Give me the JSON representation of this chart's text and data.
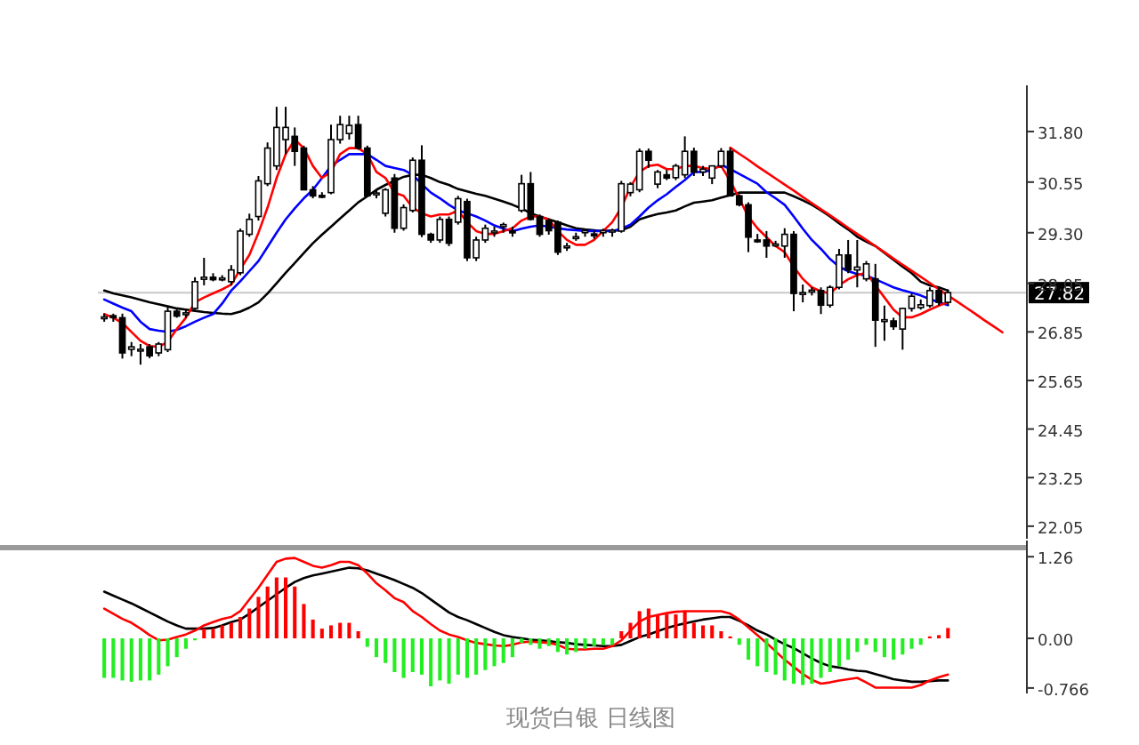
{
  "chart_data": [
    {
      "type": "candlestick",
      "categories": [
        null,
        null,
        null,
        null,
        null,
        null,
        null,
        null,
        null,
        null,
        null,
        null,
        null,
        null,
        null,
        null,
        null,
        null,
        null,
        null,
        null,
        null,
        null,
        null,
        null,
        null,
        null,
        null,
        null,
        null,
        null,
        null,
        null,
        null,
        null,
        null,
        null,
        null,
        null,
        null,
        null,
        null,
        null,
        null,
        null,
        null,
        null,
        null,
        null,
        null,
        null,
        null,
        null,
        null,
        null,
        null,
        null,
        null,
        null,
        null,
        null,
        null,
        null,
        null,
        null,
        null,
        null,
        null,
        null,
        null,
        null,
        null,
        null,
        null,
        null,
        null,
        null,
        null,
        null,
        null,
        null,
        null,
        null,
        null,
        null,
        null,
        null,
        null,
        null,
        null,
        null,
        null,
        null,
        null,
        null,
        null,
        null,
        null,
        null,
        null,
        null,
        null
      ],
      "ohlc": [
        [
          27.2,
          27.3,
          27.1,
          27.22
        ],
        [
          27.25,
          27.3,
          27.1,
          27.2
        ],
        [
          27.2,
          27.3,
          26.19,
          26.33
        ],
        [
          26.42,
          26.6,
          26.25,
          26.48
        ],
        [
          26.4,
          26.55,
          26.04,
          26.42
        ],
        [
          26.48,
          26.55,
          26.2,
          26.26
        ],
        [
          26.33,
          26.6,
          26.25,
          26.55
        ],
        [
          26.41,
          27.45,
          26.35,
          27.36
        ],
        [
          27.36,
          27.45,
          27.2,
          27.24
        ],
        [
          27.3,
          27.4,
          27.2,
          27.32
        ],
        [
          27.43,
          28.2,
          27.4,
          28.09
        ],
        [
          28.15,
          28.68,
          28.0,
          28.2
        ],
        [
          28.2,
          28.3,
          28.1,
          28.14
        ],
        [
          28.17,
          28.25,
          28.1,
          28.18
        ],
        [
          28.09,
          28.5,
          28.0,
          28.38
        ],
        [
          28.31,
          29.4,
          28.25,
          29.34
        ],
        [
          29.26,
          29.77,
          29.2,
          29.63
        ],
        [
          29.7,
          30.7,
          29.6,
          30.58
        ],
        [
          30.51,
          31.53,
          30.45,
          31.39
        ],
        [
          30.95,
          32.41,
          30.85,
          31.9
        ],
        [
          31.6,
          32.41,
          31.24,
          31.9
        ],
        [
          31.68,
          31.9,
          30.95,
          31.31
        ],
        [
          31.39,
          31.45,
          30.36,
          30.36
        ],
        [
          30.36,
          30.45,
          30.15,
          30.21
        ],
        [
          30.22,
          30.3,
          30.15,
          30.2
        ],
        [
          30.29,
          31.97,
          30.25,
          31.6
        ],
        [
          31.6,
          32.19,
          31.5,
          31.97
        ],
        [
          31.75,
          32.19,
          31.6,
          31.95
        ],
        [
          31.97,
          32.19,
          31.35,
          31.39
        ],
        [
          31.39,
          31.45,
          30.21,
          30.21
        ],
        [
          30.25,
          30.36,
          30.15,
          30.28
        ],
        [
          29.78,
          30.4,
          29.7,
          30.36
        ],
        [
          30.65,
          30.75,
          29.3,
          29.41
        ],
        [
          29.41,
          30.0,
          29.35,
          29.92
        ],
        [
          29.85,
          31.16,
          29.8,
          31.09
        ],
        [
          31.09,
          31.46,
          29.19,
          29.26
        ],
        [
          29.26,
          29.3,
          29.05,
          29.12
        ],
        [
          29.12,
          29.7,
          29.05,
          29.63
        ],
        [
          29.63,
          29.7,
          28.97,
          29.04
        ],
        [
          29.56,
          30.21,
          29.5,
          30.14
        ],
        [
          30.07,
          30.14,
          28.6,
          28.68
        ],
        [
          28.68,
          29.2,
          28.6,
          29.12
        ],
        [
          29.12,
          29.5,
          29.05,
          29.41
        ],
        [
          29.3,
          29.45,
          29.2,
          29.34
        ],
        [
          29.45,
          29.55,
          29.3,
          29.5
        ],
        [
          29.34,
          29.45,
          29.2,
          29.3
        ],
        [
          29.85,
          30.73,
          29.8,
          30.51
        ],
        [
          30.51,
          30.8,
          29.6,
          29.63
        ],
        [
          29.7,
          29.75,
          29.2,
          29.26
        ],
        [
          29.6,
          29.65,
          29.25,
          29.35
        ],
        [
          29.56,
          29.6,
          28.75,
          28.82
        ],
        [
          28.95,
          29.05,
          28.85,
          28.97
        ],
        [
          29.18,
          29.3,
          29.1,
          29.2
        ],
        [
          29.3,
          29.4,
          29.2,
          29.35
        ],
        [
          29.27,
          29.35,
          29.15,
          29.25
        ],
        [
          29.3,
          29.4,
          29.2,
          29.35
        ],
        [
          29.33,
          29.4,
          29.2,
          29.36
        ],
        [
          29.34,
          30.58,
          29.3,
          30.51
        ],
        [
          30.29,
          30.55,
          30.2,
          30.5
        ],
        [
          30.36,
          31.38,
          30.3,
          31.31
        ],
        [
          31.31,
          31.38,
          30.9,
          31.09
        ],
        [
          30.5,
          30.85,
          30.4,
          30.8
        ],
        [
          30.73,
          30.85,
          30.6,
          30.65
        ],
        [
          30.66,
          31.0,
          30.6,
          30.95
        ],
        [
          30.73,
          31.68,
          30.65,
          31.31
        ],
        [
          31.31,
          31.4,
          30.7,
          30.8
        ],
        [
          30.8,
          30.95,
          30.7,
          30.87
        ],
        [
          30.65,
          30.95,
          30.5,
          30.95
        ],
        [
          30.95,
          31.39,
          30.9,
          31.31
        ],
        [
          31.31,
          31.39,
          30.21,
          30.21
        ],
        [
          30.21,
          30.25,
          29.95,
          29.99
        ],
        [
          29.99,
          30.05,
          28.82,
          29.19
        ],
        [
          29.12,
          29.27,
          29.05,
          29.1
        ],
        [
          29.12,
          29.34,
          28.68,
          28.97
        ],
        [
          29.0,
          29.1,
          28.95,
          29.02
        ],
        [
          28.97,
          29.41,
          28.68,
          29.26
        ],
        [
          29.26,
          29.34,
          27.36,
          27.8
        ],
        [
          27.8,
          28.02,
          27.58,
          27.82
        ],
        [
          27.85,
          27.95,
          27.75,
          27.88
        ],
        [
          27.87,
          27.95,
          27.29,
          27.51
        ],
        [
          27.51,
          28.0,
          27.45,
          27.95
        ],
        [
          27.95,
          28.9,
          27.9,
          28.75
        ],
        [
          28.75,
          29.12,
          28.3,
          28.38
        ],
        [
          28.38,
          29.12,
          27.95,
          28.45
        ],
        [
          28.16,
          28.6,
          28.1,
          28.53
        ],
        [
          28.16,
          28.53,
          26.48,
          27.14
        ],
        [
          27.14,
          27.5,
          26.63,
          27.15
        ],
        [
          27.12,
          27.2,
          26.9,
          26.98
        ],
        [
          26.92,
          27.45,
          26.41,
          27.43
        ],
        [
          27.43,
          27.8,
          27.35,
          27.73
        ],
        [
          27.45,
          27.65,
          27.4,
          27.52
        ],
        [
          27.5,
          27.95,
          27.45,
          27.87
        ],
        [
          27.87,
          27.95,
          27.5,
          27.58
        ],
        [
          27.58,
          27.9,
          27.5,
          27.82
        ],
        null,
        null,
        null,
        null,
        null,
        null,
        null,
        null
      ],
      "series": [
        {
          "type": "line",
          "color": "#000000",
          "values": [
            27.87,
            27.8,
            27.75,
            27.7,
            27.64,
            27.58,
            27.53,
            27.48,
            27.43,
            27.4,
            27.37,
            27.34,
            27.32,
            27.3,
            27.29,
            27.35,
            27.45,
            27.58,
            27.8,
            28.05,
            28.31,
            28.55,
            28.8,
            29.04,
            29.25,
            29.45,
            29.65,
            29.85,
            30.05,
            30.2,
            30.36,
            30.48,
            30.58,
            30.68,
            30.73,
            30.73,
            30.65,
            30.55,
            30.48,
            30.38,
            30.32,
            30.26,
            30.21,
            30.14,
            30.07,
            29.99,
            29.9,
            29.78,
            29.7,
            29.63,
            29.56,
            29.48,
            29.41,
            29.38,
            29.36,
            29.34,
            29.35,
            29.36,
            29.45,
            29.63,
            29.7,
            29.76,
            29.8,
            29.85,
            29.95,
            30.04,
            30.07,
            30.1,
            30.17,
            30.23,
            30.29,
            30.29,
            30.29,
            30.29,
            30.29,
            30.29,
            30.2,
            30.1,
            29.99,
            29.85,
            29.7,
            29.53,
            29.38,
            29.2,
            29.08,
            28.97,
            28.8,
            28.63,
            28.46,
            28.3,
            28.09,
            28.0,
            27.95,
            27.87,
            null,
            null,
            null,
            null,
            null,
            null,
            null,
            null
          ]
        },
        {
          "type": "line",
          "color": "#0000ff",
          "values": [
            27.65,
            27.55,
            27.45,
            27.36,
            27.1,
            26.92,
            26.88,
            26.85,
            26.9,
            26.99,
            27.1,
            27.2,
            27.29,
            27.55,
            27.87,
            28.1,
            28.35,
            28.6,
            28.95,
            29.3,
            29.63,
            29.9,
            30.15,
            30.36,
            30.65,
            30.95,
            31.1,
            31.24,
            31.24,
            31.24,
            31.1,
            30.95,
            30.9,
            30.85,
            30.73,
            30.5,
            30.29,
            30.15,
            29.99,
            29.85,
            29.78,
            29.7,
            29.6,
            29.48,
            29.4,
            29.34,
            29.4,
            29.45,
            29.48,
            29.45,
            29.41,
            29.38,
            29.36,
            29.34,
            29.34,
            29.34,
            29.34,
            29.4,
            29.5,
            29.7,
            29.92,
            30.1,
            30.25,
            30.43,
            30.6,
            30.8,
            30.8,
            30.85,
            30.98,
            30.87,
            30.75,
            30.63,
            30.51,
            30.3,
            30.15,
            29.99,
            29.7,
            29.4,
            29.12,
            28.9,
            28.65,
            28.46,
            28.35,
            28.28,
            28.24,
            28.15,
            28.05,
            27.95,
            27.88,
            27.82,
            27.75,
            27.66,
            27.58,
            27.51,
            null,
            null,
            null,
            null,
            null,
            null,
            null,
            null
          ]
        },
        {
          "type": "line",
          "color": "#ff0000",
          "values": [
            27.29,
            27.2,
            27.07,
            26.85,
            26.63,
            26.5,
            26.48,
            26.6,
            26.92,
            27.2,
            27.58,
            27.7,
            27.8,
            27.9,
            28.02,
            28.4,
            28.75,
            29.3,
            29.92,
            30.65,
            31.24,
            31.6,
            31.39,
            30.95,
            30.65,
            30.8,
            31.24,
            31.39,
            31.39,
            31.24,
            30.8,
            30.65,
            30.29,
            30.21,
            29.92,
            29.78,
            29.7,
            29.75,
            29.75,
            29.85,
            29.56,
            29.34,
            29.27,
            29.27,
            29.34,
            29.41,
            29.6,
            29.7,
            29.7,
            29.63,
            29.34,
            29.12,
            29.0,
            29.0,
            29.12,
            29.34,
            29.56,
            29.92,
            30.43,
            30.8,
            30.95,
            30.98,
            30.87,
            30.87,
            30.95,
            30.95,
            30.9,
            30.87,
            30.95,
            30.58,
            30.14,
            29.7,
            29.41,
            29.19,
            28.97,
            28.82,
            28.46,
            28.16,
            27.95,
            27.85,
            27.8,
            28.0,
            28.15,
            28.25,
            28.31,
            28.0,
            27.7,
            27.4,
            27.21,
            27.21,
            27.29,
            27.4,
            27.5,
            27.58,
            null,
            null,
            null,
            null,
            null,
            null,
            null,
            null
          ]
        },
        {
          "type": "line",
          "color": "#ff0000",
          "values": [
            null,
            null,
            null,
            null,
            null,
            null,
            null,
            null,
            null,
            null,
            null,
            null,
            null,
            null,
            null,
            null,
            null,
            null,
            null,
            null,
            null,
            null,
            null,
            null,
            null,
            null,
            null,
            null,
            null,
            null,
            null,
            null,
            null,
            null,
            null,
            null,
            null,
            null,
            null,
            null,
            null,
            null,
            null,
            null,
            null,
            null,
            null,
            null,
            null,
            null,
            null,
            null,
            null,
            null,
            null,
            null,
            null,
            null,
            null,
            null,
            null,
            null,
            null,
            null,
            null,
            null,
            null,
            null,
            null,
            31.4,
            31.25,
            31.1,
            30.94,
            30.79,
            30.64,
            30.49,
            30.34,
            30.18,
            30.03,
            29.88,
            29.73,
            29.58,
            29.42,
            29.27,
            29.12,
            28.97,
            28.82,
            28.66,
            28.51,
            28.36,
            28.21,
            28.06,
            27.9,
            27.75,
            27.6,
            27.45,
            27.3,
            27.14,
            26.99,
            26.84,
            null,
            null
          ]
        }
      ],
      "ylim": [
        21.74,
        32.94
      ],
      "yticks": [
        {
          "value": 31.8,
          "label": "31.80"
        },
        {
          "value": 30.55,
          "label": "30.55"
        },
        {
          "value": 29.3,
          "label": "29.30"
        },
        {
          "value": 28.05,
          "label": "28.05"
        },
        {
          "value": 26.85,
          "label": "26.85"
        },
        {
          "value": 25.65,
          "label": "25.65"
        },
        {
          "value": 24.45,
          "label": "24.45"
        },
        {
          "value": 23.25,
          "label": "23.25"
        },
        {
          "value": 22.05,
          "label": "22.05"
        }
      ],
      "ref_lines": [
        {
          "axis": "y",
          "value": 27.82,
          "label": "27.82",
          "color": "#c8c8c8"
        }
      ],
      "tick_labels": "y"
    },
    {
      "type": "bar",
      "categories": [
        null,
        null,
        null,
        null,
        null,
        null,
        null,
        null,
        null,
        null,
        null,
        null,
        null,
        null,
        null,
        null,
        null,
        null,
        null,
        null,
        null,
        null,
        null,
        null,
        null,
        null,
        null,
        null,
        null,
        null,
        null,
        null,
        null,
        null,
        null,
        null,
        null,
        null,
        null,
        null,
        null,
        null,
        null,
        null,
        null,
        null,
        null,
        null,
        null,
        null,
        null,
        null,
        null,
        null,
        null,
        null,
        null,
        null,
        null,
        null,
        null,
        null,
        null,
        null,
        null,
        null,
        null,
        null,
        null,
        null,
        null,
        null,
        null,
        null,
        null,
        null,
        null,
        null,
        null,
        null,
        null,
        null,
        null,
        null,
        null,
        null,
        null,
        null,
        null,
        null,
        null,
        null,
        null,
        null,
        null,
        null,
        null,
        null,
        null,
        null,
        null,
        null
      ],
      "series": [
        {
          "type": "bar",
          "values": [
            -0.61,
            -0.61,
            -0.65,
            -0.67,
            -0.65,
            -0.65,
            -0.56,
            -0.43,
            -0.29,
            -0.16,
            -0.03,
            0.15,
            0.15,
            0.2,
            0.24,
            0.33,
            0.46,
            0.64,
            0.8,
            0.94,
            0.94,
            0.8,
            0.53,
            0.29,
            0.15,
            0.2,
            0.24,
            0.24,
            0.11,
            -0.13,
            -0.29,
            -0.38,
            -0.52,
            -0.61,
            -0.52,
            -0.56,
            -0.74,
            -0.65,
            -0.7,
            -0.56,
            -0.61,
            -0.56,
            -0.49,
            -0.43,
            -0.38,
            -0.29,
            -0.07,
            -0.1,
            -0.16,
            -0.12,
            -0.21,
            -0.25,
            -0.21,
            -0.16,
            -0.12,
            -0.1,
            -0.1,
            0.11,
            0.24,
            0.42,
            0.46,
            0.37,
            0.37,
            0.37,
            0.42,
            0.24,
            0.2,
            0.2,
            0.11,
            0.03,
            -0.1,
            -0.33,
            -0.43,
            -0.52,
            -0.56,
            -0.65,
            -0.7,
            -0.72,
            -0.7,
            -0.61,
            -0.52,
            -0.43,
            -0.33,
            -0.21,
            -0.1,
            -0.21,
            -0.29,
            -0.33,
            -0.25,
            -0.16,
            -0.1,
            0.03,
            0.05,
            0.16,
            null,
            null,
            null,
            null,
            null,
            null,
            null,
            null
          ],
          "colors": [
            "#22ee22",
            "#22ee22",
            "#22ee22",
            "#22ee22",
            "#22ee22",
            "#22ee22",
            "#22ee22",
            "#22ee22",
            "#22ee22",
            "#22ee22",
            "#22ee22",
            "#ff0000",
            "#ff0000",
            "#ff0000",
            "#ff0000",
            "#ff0000",
            "#ff0000",
            "#ff0000",
            "#ff0000",
            "#ff0000",
            "#ff0000",
            "#ff0000",
            "#ff0000",
            "#ff0000",
            "#ff0000",
            "#ff0000",
            "#ff0000",
            "#ff0000",
            "#ff0000",
            "#22ee22",
            "#22ee22",
            "#22ee22",
            "#22ee22",
            "#22ee22",
            "#22ee22",
            "#22ee22",
            "#22ee22",
            "#22ee22",
            "#22ee22",
            "#22ee22",
            "#22ee22",
            "#22ee22",
            "#22ee22",
            "#22ee22",
            "#22ee22",
            "#22ee22",
            "#22ee22",
            "#22ee22",
            "#22ee22",
            "#22ee22",
            "#22ee22",
            "#22ee22",
            "#22ee22",
            "#22ee22",
            "#22ee22",
            "#22ee22",
            "#22ee22",
            "#ff0000",
            "#ff0000",
            "#ff0000",
            "#ff0000",
            "#ff0000",
            "#ff0000",
            "#ff0000",
            "#ff0000",
            "#ff0000",
            "#ff0000",
            "#ff0000",
            "#ff0000",
            "#ff0000",
            "#22ee22",
            "#22ee22",
            "#22ee22",
            "#22ee22",
            "#22ee22",
            "#22ee22",
            "#22ee22",
            "#22ee22",
            "#22ee22",
            "#22ee22",
            "#22ee22",
            "#22ee22",
            "#22ee22",
            "#22ee22",
            "#22ee22",
            "#22ee22",
            "#22ee22",
            "#22ee22",
            "#22ee22",
            "#22ee22",
            "#22ee22",
            "#ff0000",
            "#ff0000",
            "#ff0000",
            null,
            null,
            null,
            null,
            null,
            null,
            null,
            null
          ]
        },
        {
          "type": "line",
          "color": "#000000",
          "values": [
            0.72,
            0.66,
            0.6,
            0.54,
            0.47,
            0.4,
            0.33,
            0.26,
            0.2,
            0.15,
            0.15,
            0.15,
            0.16,
            0.2,
            0.25,
            0.29,
            0.38,
            0.48,
            0.58,
            0.68,
            0.78,
            0.87,
            0.93,
            0.97,
            1.0,
            1.03,
            1.06,
            1.09,
            1.08,
            1.05,
            1.0,
            0.95,
            0.9,
            0.84,
            0.78,
            0.7,
            0.6,
            0.5,
            0.4,
            0.33,
            0.28,
            0.22,
            0.16,
            0.1,
            0.05,
            0.02,
            0.0,
            -0.02,
            -0.03,
            -0.04,
            -0.06,
            -0.07,
            -0.09,
            -0.1,
            -0.11,
            -0.12,
            -0.12,
            -0.1,
            -0.04,
            0.02,
            0.06,
            0.11,
            0.16,
            0.2,
            0.23,
            0.26,
            0.29,
            0.31,
            0.33,
            0.33,
            0.27,
            0.2,
            0.12,
            0.06,
            -0.02,
            -0.09,
            -0.15,
            -0.23,
            -0.31,
            -0.38,
            -0.43,
            -0.45,
            -0.48,
            -0.5,
            -0.51,
            -0.55,
            -0.59,
            -0.63,
            -0.65,
            -0.67,
            -0.67,
            -0.66,
            -0.65,
            -0.65,
            null,
            null,
            null,
            null,
            null,
            null,
            null,
            null
          ]
        },
        {
          "type": "line",
          "color": "#ff0000",
          "values": [
            0.46,
            0.38,
            0.3,
            0.24,
            0.15,
            0.05,
            -0.03,
            -0.02,
            0.02,
            0.06,
            0.12,
            0.2,
            0.25,
            0.3,
            0.33,
            0.42,
            0.6,
            0.78,
            0.98,
            1.18,
            1.23,
            1.24,
            1.18,
            1.12,
            1.09,
            1.13,
            1.18,
            1.18,
            1.13,
            1.0,
            0.85,
            0.74,
            0.62,
            0.56,
            0.42,
            0.33,
            0.22,
            0.12,
            0.06,
            0.02,
            -0.03,
            -0.07,
            -0.09,
            -0.11,
            -0.12,
            -0.1,
            -0.06,
            -0.05,
            -0.06,
            -0.07,
            -0.1,
            -0.16,
            -0.17,
            -0.17,
            -0.16,
            -0.16,
            -0.12,
            -0.03,
            0.12,
            0.26,
            0.33,
            0.36,
            0.39,
            0.41,
            0.42,
            0.42,
            0.42,
            0.42,
            0.42,
            0.38,
            0.29,
            0.17,
            0.05,
            -0.07,
            -0.2,
            -0.33,
            -0.44,
            -0.55,
            -0.64,
            -0.7,
            -0.68,
            -0.65,
            -0.63,
            -0.61,
            -0.68,
            -0.76,
            -0.76,
            -0.76,
            -0.76,
            -0.76,
            -0.72,
            -0.65,
            -0.6,
            -0.56,
            null,
            null,
            null,
            null,
            null,
            null,
            null,
            null
          ]
        }
      ],
      "ylim": [
        -0.85,
        1.4
      ],
      "yticks": [
        {
          "value": 1.26,
          "label": "1.26"
        },
        {
          "value": 0,
          "label": "0.00"
        },
        {
          "value": -0.766,
          "label": "-0.766"
        }
      ],
      "tick_labels": "y",
      "annotations": [
        "现货白银 日线图"
      ]
    }
  ]
}
